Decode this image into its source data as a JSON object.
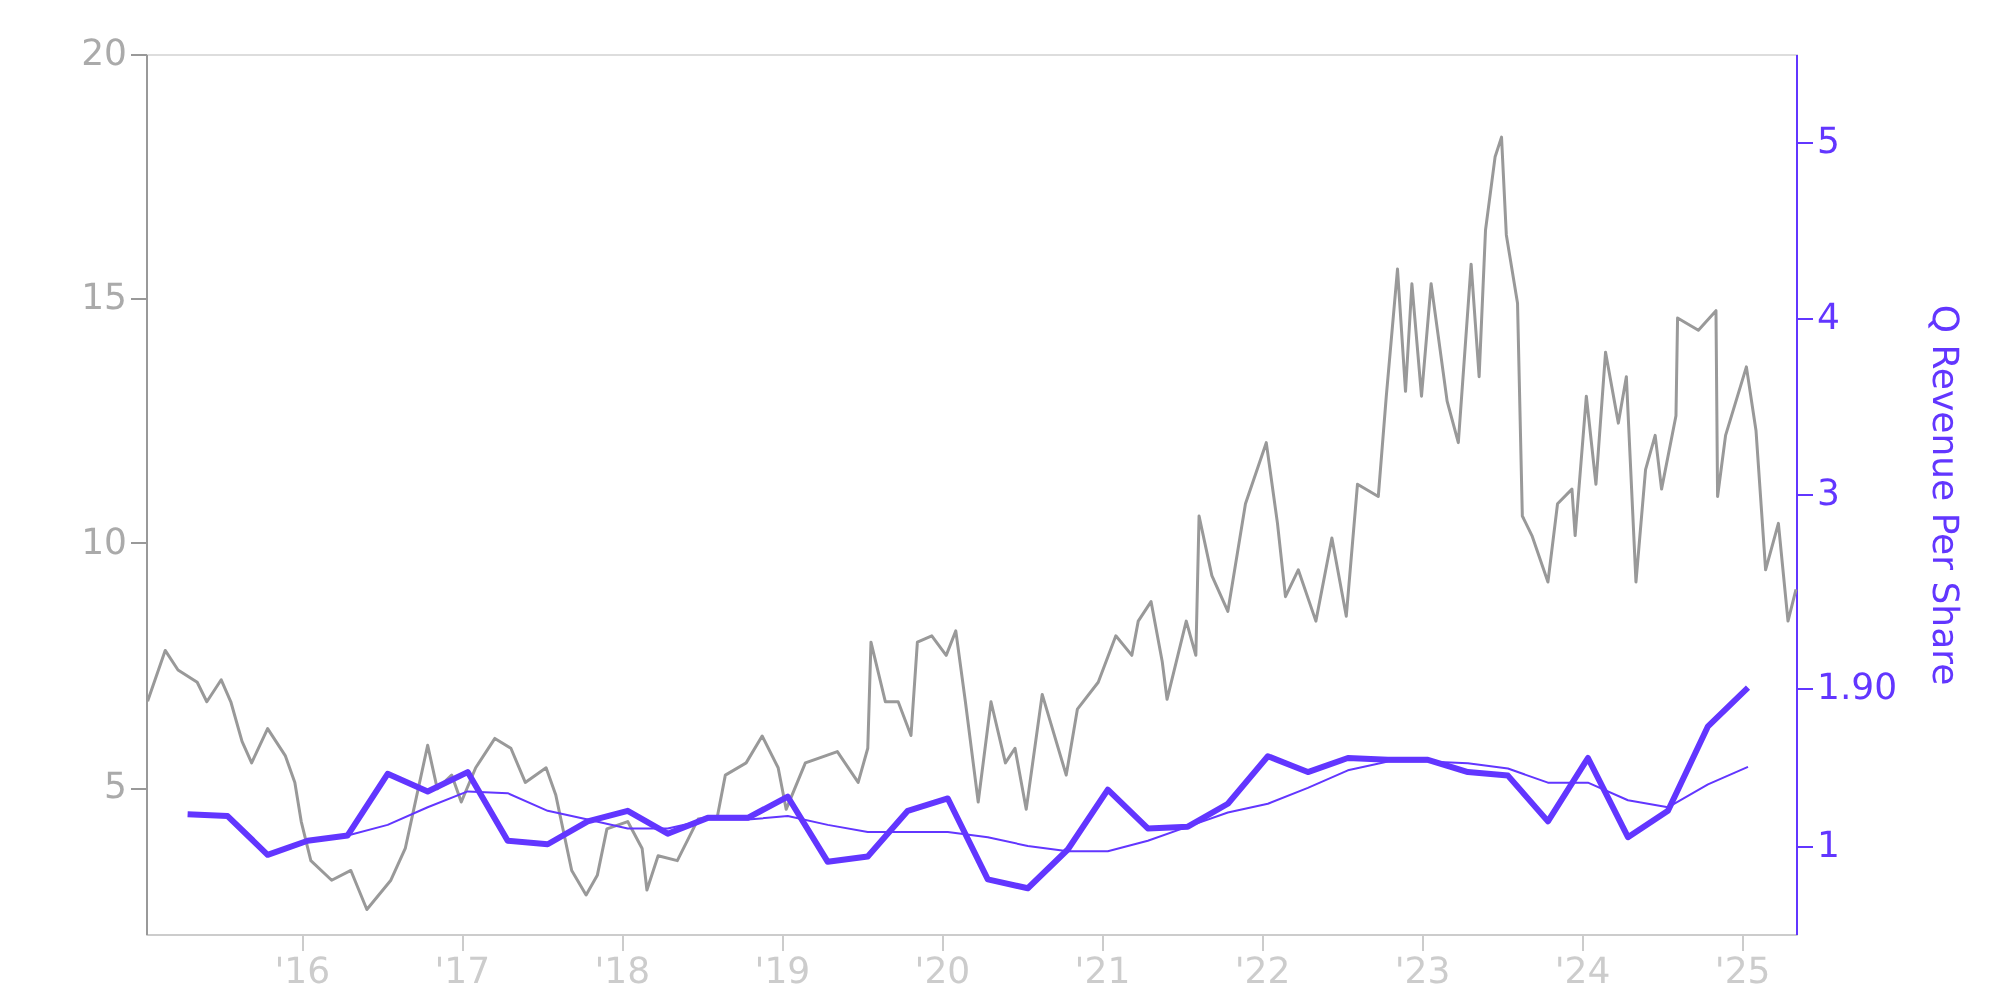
{
  "chart_data": {
    "type": "line",
    "xlim": [
      2015.03,
      2025.34
    ],
    "xticks": [
      {
        "value": 2016,
        "label": "'16"
      },
      {
        "value": 2017,
        "label": "'17"
      },
      {
        "value": 2018,
        "label": "'18"
      },
      {
        "value": 2019,
        "label": "'19"
      },
      {
        "value": 2020,
        "label": "'20"
      },
      {
        "value": 2021,
        "label": "'21"
      },
      {
        "value": 2022,
        "label": "'22"
      },
      {
        "value": 2023,
        "label": "'23"
      },
      {
        "value": 2024,
        "label": "'24"
      },
      {
        "value": 2025,
        "label": "'25"
      }
    ],
    "ylim": [
      2,
      20
    ],
    "yticks": [
      5,
      10,
      15,
      20
    ],
    "y2lim": [
      0.5,
      5.5
    ],
    "y2ticks": [
      1,
      {
        "value": 1.9,
        "label": "1.90"
      },
      3,
      4,
      5
    ],
    "y2label": "Q Revenue Per Share",
    "grid": false,
    "marker": "none",
    "line_style": "solid",
    "series": [
      {
        "color": "#999999",
        "axis": "y",
        "x": [
          2015.04,
          2015.15,
          2015.23,
          2015.35,
          2015.41,
          2015.5,
          2015.56,
          2015.63,
          2015.69,
          2015.79,
          2015.9,
          2015.96,
          2016.0,
          2016.06,
          2016.19,
          2016.31,
          2016.41,
          2016.56,
          2016.65,
          2016.79,
          2016.85,
          2016.94,
          2017.0,
          2017.09,
          2017.21,
          2017.31,
          2017.4,
          2017.53,
          2017.59,
          2017.69,
          2017.78,
          2017.85,
          2017.91,
          2018.04,
          2018.13,
          2018.16,
          2018.23,
          2018.35,
          2018.48,
          2018.6,
          2018.65,
          2018.78,
          2018.88,
          2018.98,
          2019.03,
          2019.15,
          2019.35,
          2019.48,
          2019.54,
          2019.56,
          2019.65,
          2019.73,
          2019.81,
          2019.85,
          2019.94,
          2020.03,
          2020.09,
          2020.15,
          2020.23,
          2020.31,
          2020.4,
          2020.46,
          2020.53,
          2020.63,
          2020.78,
          2020.85,
          2020.98,
          2021.09,
          2021.19,
          2021.23,
          2021.31,
          2021.38,
          2021.41,
          2021.53,
          2021.59,
          2021.61,
          2021.69,
          2021.79,
          2021.9,
          2022.03,
          2022.1,
          2022.15,
          2022.23,
          2022.34,
          2022.44,
          2022.53,
          2022.6,
          2022.73,
          2022.78,
          2022.85,
          2022.9,
          2022.94,
          2023.0,
          2023.06,
          2023.16,
          2023.23,
          2023.31,
          2023.36,
          2023.4,
          2023.46,
          2023.5,
          2023.53,
          2023.6,
          2023.63,
          2023.69,
          2023.79,
          2023.85,
          2023.94,
          2023.96,
          2024.03,
          2024.09,
          2024.15,
          2024.23,
          2024.28,
          2024.34,
          2024.4,
          2024.46,
          2024.5,
          2024.59,
          2024.6,
          2024.73,
          2024.84,
          2024.85,
          2024.9,
          2025.03,
          2025.09,
          2025.15,
          2025.23,
          2025.29,
          2025.34
        ],
        "values": [
          6.76,
          7.8,
          7.4,
          7.15,
          6.75,
          7.2,
          6.75,
          5.94,
          5.5,
          6.2,
          5.65,
          5.1,
          4.3,
          3.5,
          3.1,
          3.3,
          2.5,
          3.1,
          3.75,
          5.86,
          4.97,
          5.25,
          4.7,
          5.4,
          6.0,
          5.8,
          5.1,
          5.4,
          4.85,
          3.3,
          2.8,
          3.2,
          4.15,
          4.3,
          3.75,
          2.9,
          3.6,
          3.5,
          4.35,
          4.4,
          5.25,
          5.5,
          6.05,
          5.4,
          4.55,
          5.5,
          5.73,
          5.1,
          5.8,
          7.97,
          6.75,
          6.75,
          6.06,
          7.97,
          8.1,
          7.7,
          8.2,
          6.75,
          4.7,
          6.75,
          5.5,
          5.8,
          4.55,
          6.9,
          5.25,
          6.6,
          7.15,
          8.1,
          7.7,
          8.4,
          8.8,
          7.57,
          6.8,
          8.4,
          7.7,
          10.55,
          9.33,
          8.6,
          10.8,
          12.05,
          10.4,
          8.9,
          9.45,
          8.4,
          10.1,
          8.5,
          11.2,
          10.95,
          13.0,
          15.6,
          13.1,
          15.3,
          13.0,
          15.3,
          12.9,
          12.05,
          15.7,
          13.4,
          16.4,
          17.9,
          18.3,
          16.3,
          14.9,
          10.55,
          10.15,
          9.2,
          10.8,
          11.1,
          10.15,
          13.0,
          11.2,
          13.9,
          12.45,
          13.4,
          9.2,
          11.5,
          12.2,
          11.1,
          12.6,
          14.6,
          14.35,
          14.75,
          10.95,
          12.2,
          13.6,
          12.3,
          9.45,
          10.4,
          8.4,
          9.05
        ]
      },
      {
        "color": "#6236ff",
        "axis": "y2",
        "x": [
          2015.29,
          2015.54,
          2015.79,
          2016.04,
          2016.29,
          2016.54,
          2016.79,
          2017.04,
          2017.29,
          2017.54,
          2017.79,
          2018.04,
          2018.29,
          2018.54,
          2018.79,
          2019.04,
          2019.29,
          2019.54,
          2019.79,
          2020.04,
          2020.29,
          2020.54,
          2020.79,
          2021.04,
          2021.29,
          2021.54,
          2021.79,
          2022.04,
          2022.29,
          2022.54,
          2022.79,
          2023.04,
          2023.29,
          2023.54,
          2023.79,
          2024.04,
          2024.29,
          2024.54,
          2024.79,
          2025.04
        ],
        "values": [
          1.18,
          1.17,
          0.95,
          1.03,
          1.06,
          1.41,
          1.31,
          1.42,
          1.03,
          1.01,
          1.14,
          1.2,
          1.07,
          1.16,
          1.16,
          1.28,
          0.91,
          0.94,
          1.2,
          1.27,
          0.81,
          0.76,
          0.98,
          1.32,
          1.1,
          1.11,
          1.24,
          1.51,
          1.42,
          1.5,
          1.49,
          1.49,
          1.42,
          1.4,
          1.14,
          1.5,
          1.05,
          1.2,
          1.68,
          1.9
        ]
      },
      {
        "color": "#6236ff",
        "axis": "y2",
        "x": [
          2016.04,
          2016.29,
          2016.54,
          2016.79,
          2017.04,
          2017.29,
          2017.54,
          2017.79,
          2018.04,
          2018.29,
          2018.54,
          2018.79,
          2019.04,
          2019.29,
          2019.54,
          2019.79,
          2020.04,
          2020.29,
          2020.54,
          2020.79,
          2021.04,
          2021.29,
          2021.54,
          2021.79,
          2022.04,
          2022.29,
          2022.54,
          2022.79,
          2023.04,
          2023.29,
          2023.54,
          2023.79,
          2024.04,
          2024.29,
          2024.54,
          2024.79,
          2025.04
        ],
        "values": [
          1.03,
          1.06,
          1.12,
          1.22,
          1.31,
          1.3,
          1.2,
          1.15,
          1.1,
          1.1,
          1.15,
          1.15,
          1.17,
          1.12,
          1.08,
          1.08,
          1.08,
          1.05,
          1.0,
          0.97,
          0.97,
          1.03,
          1.11,
          1.19,
          1.24,
          1.33,
          1.43,
          1.48,
          1.48,
          1.47,
          1.44,
          1.36,
          1.36,
          1.26,
          1.22,
          1.35,
          1.45
        ]
      }
    ]
  }
}
